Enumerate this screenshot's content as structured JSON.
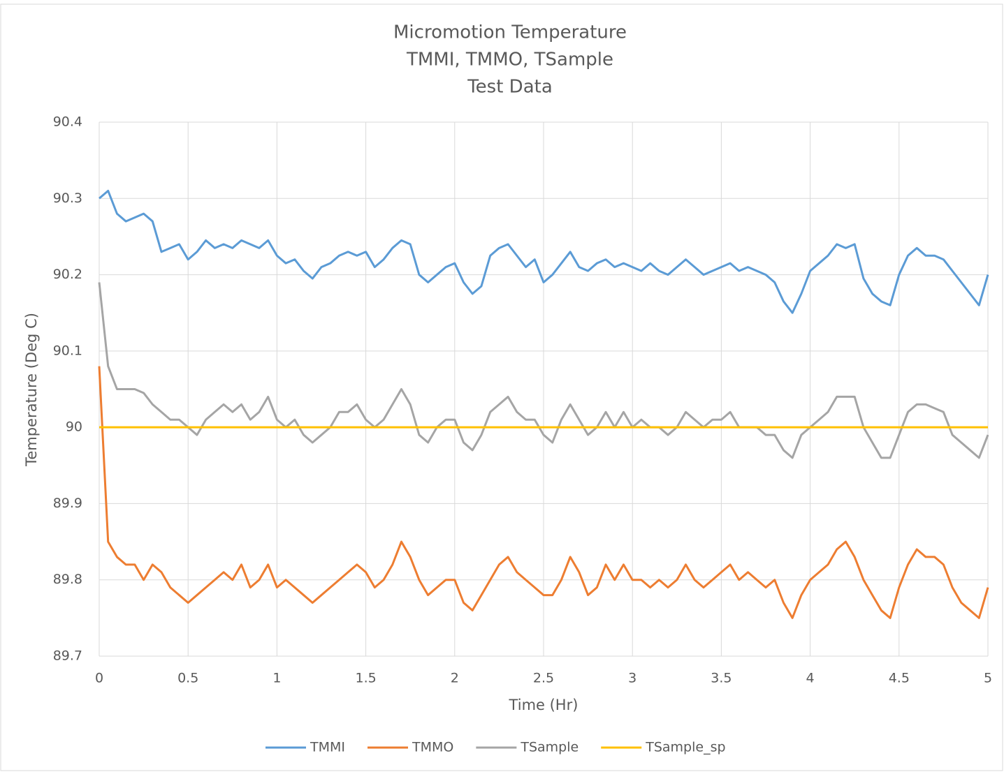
{
  "chart_data": {
    "type": "line",
    "title": [
      "Micromotion Temperature",
      "TMMI, TMMO, TSample",
      "Test Data"
    ],
    "x_label": "Time (Hr)",
    "y_label": "Temperature (Deg C)",
    "xlim": [
      0,
      5
    ],
    "xticks": [
      0,
      0.5,
      1,
      1.5,
      2,
      2.5,
      3,
      3.5,
      4,
      4.5,
      5
    ],
    "ylim": [
      89.7,
      90.4
    ],
    "yticks": [
      89.7,
      89.8,
      89.9,
      90,
      90.1,
      90.2,
      90.3,
      90.4
    ],
    "grid": true,
    "legend": "bottom",
    "x": [
      0,
      0.05,
      0.1,
      0.15,
      0.2,
      0.25,
      0.3,
      0.35,
      0.4,
      0.45,
      0.5,
      0.55,
      0.6,
      0.65,
      0.7,
      0.75,
      0.8,
      0.85,
      0.9,
      0.95,
      1,
      1.05,
      1.1,
      1.15,
      1.2,
      1.25,
      1.3,
      1.35,
      1.4,
      1.45,
      1.5,
      1.55,
      1.6,
      1.65,
      1.7,
      1.75,
      1.8,
      1.85,
      1.9,
      1.95,
      2,
      2.05,
      2.1,
      2.15,
      2.2,
      2.25,
      2.3,
      2.35,
      2.4,
      2.45,
      2.5,
      2.55,
      2.6,
      2.65,
      2.7,
      2.75,
      2.8,
      2.85,
      2.9,
      2.95,
      3,
      3.05,
      3.1,
      3.15,
      3.2,
      3.25,
      3.3,
      3.35,
      3.4,
      3.45,
      3.5,
      3.55,
      3.6,
      3.65,
      3.7,
      3.75,
      3.8,
      3.85,
      3.9,
      3.95,
      4,
      4.05,
      4.1,
      4.15,
      4.2,
      4.25,
      4.3,
      4.35,
      4.4,
      4.45,
      4.5,
      4.55,
      4.6,
      4.65,
      4.7,
      4.75,
      4.8,
      4.85,
      4.9,
      4.95,
      5
    ],
    "series": [
      {
        "name": "TMMI",
        "color": "#5b9bd5",
        "values": [
          90.3,
          90.31,
          90.28,
          90.27,
          90.275,
          90.28,
          90.27,
          90.23,
          90.235,
          90.24,
          90.22,
          90.23,
          90.245,
          90.235,
          90.24,
          90.235,
          90.245,
          90.24,
          90.235,
          90.245,
          90.225,
          90.215,
          90.22,
          90.205,
          90.195,
          90.21,
          90.215,
          90.225,
          90.23,
          90.225,
          90.23,
          90.21,
          90.22,
          90.235,
          90.245,
          90.24,
          90.2,
          90.19,
          90.2,
          90.21,
          90.215,
          90.19,
          90.175,
          90.185,
          90.225,
          90.235,
          90.24,
          90.225,
          90.21,
          90.22,
          90.19,
          90.2,
          90.215,
          90.23,
          90.21,
          90.205,
          90.215,
          90.22,
          90.21,
          90.215,
          90.21,
          90.205,
          90.215,
          90.205,
          90.2,
          90.21,
          90.22,
          90.21,
          90.2,
          90.205,
          90.21,
          90.215,
          90.205,
          90.21,
          90.205,
          90.2,
          90.19,
          90.165,
          90.15,
          90.175,
          90.205,
          90.215,
          90.225,
          90.24,
          90.235,
          90.24,
          90.195,
          90.175,
          90.165,
          90.16,
          90.2,
          90.225,
          90.235,
          90.225,
          90.225,
          90.22,
          90.205,
          90.19,
          90.175,
          90.16,
          90.2
        ]
      },
      {
        "name": "TMMO",
        "color": "#ed7d31",
        "values": [
          90.08,
          89.85,
          89.83,
          89.82,
          89.82,
          89.8,
          89.82,
          89.81,
          89.79,
          89.78,
          89.77,
          89.78,
          89.79,
          89.8,
          89.81,
          89.8,
          89.82,
          89.79,
          89.8,
          89.82,
          89.79,
          89.8,
          89.79,
          89.78,
          89.77,
          89.78,
          89.79,
          89.8,
          89.81,
          89.82,
          89.81,
          89.79,
          89.8,
          89.82,
          89.85,
          89.83,
          89.8,
          89.78,
          89.79,
          89.8,
          89.8,
          89.77,
          89.76,
          89.78,
          89.8,
          89.82,
          89.83,
          89.81,
          89.8,
          89.79,
          89.78,
          89.78,
          89.8,
          89.83,
          89.81,
          89.78,
          89.79,
          89.82,
          89.8,
          89.82,
          89.8,
          89.8,
          89.79,
          89.8,
          89.79,
          89.8,
          89.82,
          89.8,
          89.79,
          89.8,
          89.81,
          89.82,
          89.8,
          89.81,
          89.8,
          89.79,
          89.8,
          89.77,
          89.75,
          89.78,
          89.8,
          89.81,
          89.82,
          89.84,
          89.85,
          89.83,
          89.8,
          89.78,
          89.76,
          89.75,
          89.79,
          89.82,
          89.84,
          89.83,
          89.83,
          89.82,
          89.79,
          89.77,
          89.76,
          89.75,
          89.79
        ]
      },
      {
        "name": "TSample",
        "color": "#a5a5a5",
        "values": [
          90.19,
          90.08,
          90.05,
          90.05,
          90.05,
          90.045,
          90.03,
          90.02,
          90.01,
          90.01,
          90.0,
          89.99,
          90.01,
          90.02,
          90.03,
          90.02,
          90.03,
          90.01,
          90.02,
          90.04,
          90.01,
          90.0,
          90.01,
          89.99,
          89.98,
          89.99,
          90.0,
          90.02,
          90.02,
          90.03,
          90.01,
          90.0,
          90.01,
          90.03,
          90.05,
          90.03,
          89.99,
          89.98,
          90.0,
          90.01,
          90.01,
          89.98,
          89.97,
          89.99,
          90.02,
          90.03,
          90.04,
          90.02,
          90.01,
          90.01,
          89.99,
          89.98,
          90.01,
          90.03,
          90.01,
          89.99,
          90.0,
          90.02,
          90.0,
          90.02,
          90.0,
          90.01,
          90.0,
          90.0,
          89.99,
          90.0,
          90.02,
          90.01,
          90.0,
          90.01,
          90.01,
          90.02,
          90.0,
          90.0,
          90.0,
          89.99,
          89.99,
          89.97,
          89.96,
          89.99,
          90.0,
          90.01,
          90.02,
          90.04,
          90.04,
          90.04,
          90.0,
          89.98,
          89.96,
          89.96,
          89.99,
          90.02,
          90.03,
          90.03,
          90.025,
          90.02,
          89.99,
          89.98,
          89.97,
          89.96,
          89.99
        ]
      },
      {
        "name": "TSample_sp",
        "color": "#ffc000",
        "values": [
          90,
          90,
          90,
          90,
          90,
          90,
          90,
          90,
          90,
          90,
          90,
          90,
          90,
          90,
          90,
          90,
          90,
          90,
          90,
          90,
          90,
          90,
          90,
          90,
          90,
          90,
          90,
          90,
          90,
          90,
          90,
          90,
          90,
          90,
          90,
          90,
          90,
          90,
          90,
          90,
          90,
          90,
          90,
          90,
          90,
          90,
          90,
          90,
          90,
          90,
          90,
          90,
          90,
          90,
          90,
          90,
          90,
          90,
          90,
          90,
          90,
          90,
          90,
          90,
          90,
          90,
          90,
          90,
          90,
          90,
          90,
          90,
          90,
          90,
          90,
          90,
          90,
          90,
          90,
          90,
          90,
          90,
          90,
          90,
          90,
          90,
          90,
          90,
          90,
          90,
          90,
          90,
          90,
          90,
          90,
          90,
          90,
          90,
          90,
          90,
          90
        ]
      }
    ]
  }
}
